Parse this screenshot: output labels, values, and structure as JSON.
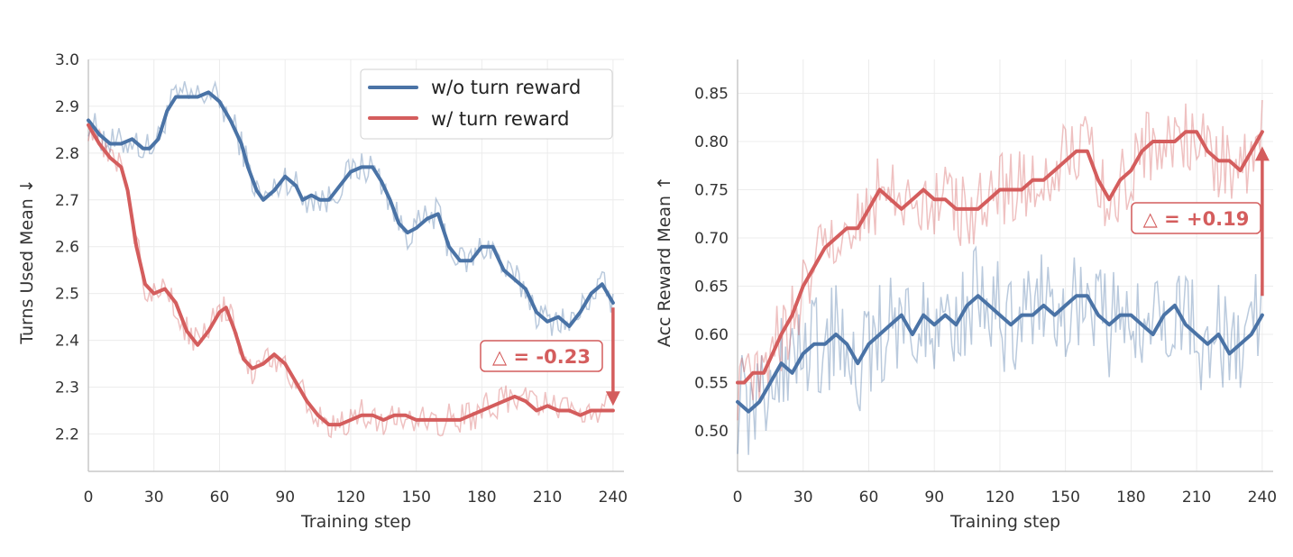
{
  "colors": {
    "blue": "#4a73a6",
    "red": "#d45d5d",
    "grid": "#ececec",
    "axis": "#c8c8c8"
  },
  "legend": {
    "items": [
      {
        "label": "w/o turn reward",
        "color": "#4a73a6"
      },
      {
        "label": "w/ turn reward",
        "color": "#d45d5d"
      }
    ],
    "placement": "upper-right of left chart"
  },
  "chart_data": [
    {
      "type": "line",
      "title": "",
      "xlabel": "Training step",
      "ylabel": "Turns Used Mean ↓",
      "xlim": [
        0,
        245
      ],
      "ylim": [
        2.12,
        3.0
      ],
      "xticks": [
        0,
        30,
        60,
        90,
        120,
        150,
        180,
        210,
        240
      ],
      "yticks": [
        2.2,
        2.3,
        2.4,
        2.5,
        2.6,
        2.7,
        2.8,
        2.9,
        3.0
      ],
      "ytick_labels": [
        "2.2",
        "2.3",
        "2.4",
        "2.5",
        "2.6",
        "2.7",
        "2.8",
        "2.9",
        "3.0"
      ],
      "grid": true,
      "legend": "top-right",
      "series": [
        {
          "name": "w/o turn reward",
          "color": "#4a73a6",
          "smoothed": {
            "x": [
              0,
              5,
              10,
              15,
              20,
              25,
              28,
              32,
              36,
              40,
              45,
              50,
              55,
              60,
              65,
              70,
              73,
              77,
              80,
              85,
              90,
              95,
              98,
              102,
              106,
              110,
              115,
              120,
              125,
              130,
              134,
              138,
              142,
              146,
              150,
              155,
              160,
              165,
              170,
              175,
              180,
              185,
              190,
              195,
              200,
              205,
              210,
              215,
              220,
              225,
              230,
              235,
              240
            ],
            "y": [
              2.87,
              2.84,
              2.82,
              2.82,
              2.83,
              2.81,
              2.81,
              2.83,
              2.89,
              2.92,
              2.92,
              2.92,
              2.93,
              2.91,
              2.87,
              2.82,
              2.77,
              2.72,
              2.7,
              2.72,
              2.75,
              2.73,
              2.7,
              2.71,
              2.7,
              2.7,
              2.73,
              2.76,
              2.77,
              2.77,
              2.74,
              2.7,
              2.65,
              2.63,
              2.64,
              2.66,
              2.67,
              2.6,
              2.57,
              2.57,
              2.6,
              2.6,
              2.55,
              2.53,
              2.51,
              2.46,
              2.44,
              2.45,
              2.43,
              2.46,
              2.5,
              2.52,
              2.48
            ]
          }
        },
        {
          "name": "w/ turn reward",
          "color": "#d45d5d",
          "smoothed": {
            "x": [
              0,
              5,
              10,
              15,
              18,
              22,
              26,
              30,
              35,
              40,
              45,
              50,
              55,
              60,
              63,
              67,
              71,
              75,
              80,
              85,
              90,
              95,
              100,
              105,
              110,
              115,
              120,
              125,
              130,
              135,
              140,
              145,
              150,
              155,
              160,
              165,
              170,
              175,
              180,
              185,
              190,
              195,
              200,
              205,
              210,
              215,
              220,
              225,
              230,
              235,
              240
            ],
            "y": [
              2.86,
              2.82,
              2.79,
              2.77,
              2.72,
              2.6,
              2.52,
              2.5,
              2.51,
              2.48,
              2.42,
              2.39,
              2.42,
              2.46,
              2.47,
              2.42,
              2.36,
              2.34,
              2.35,
              2.37,
              2.35,
              2.31,
              2.27,
              2.24,
              2.22,
              2.22,
              2.23,
              2.24,
              2.24,
              2.23,
              2.24,
              2.24,
              2.23,
              2.23,
              2.23,
              2.23,
              2.23,
              2.24,
              2.25,
              2.26,
              2.27,
              2.28,
              2.27,
              2.25,
              2.26,
              2.25,
              2.25,
              2.24,
              2.25,
              2.25,
              2.25
            ]
          }
        }
      ],
      "annotation": {
        "text": "△ = -0.23",
        "arrow_from": 2.47,
        "arrow_to": 2.26,
        "x": 240
      }
    },
    {
      "type": "line",
      "title": "",
      "xlabel": "Training step",
      "ylabel": "Acc Reward Mean ↑",
      "xlim": [
        0,
        245
      ],
      "ylim": [
        0.458,
        0.885
      ],
      "xticks": [
        0,
        30,
        60,
        90,
        120,
        150,
        180,
        210,
        240
      ],
      "yticks": [
        0.5,
        0.55,
        0.6,
        0.65,
        0.7,
        0.75,
        0.8,
        0.85
      ],
      "ytick_labels": [
        "0.50",
        "0.55",
        "0.60",
        "0.65",
        "0.70",
        "0.75",
        "0.80",
        "0.85"
      ],
      "grid": true,
      "series": [
        {
          "name": "w/o turn reward",
          "color": "#4a73a6",
          "smoothed": {
            "x": [
              0,
              5,
              10,
              15,
              20,
              25,
              30,
              35,
              40,
              45,
              50,
              55,
              60,
              65,
              70,
              75,
              80,
              85,
              90,
              95,
              100,
              105,
              110,
              115,
              120,
              125,
              130,
              135,
              140,
              145,
              150,
              155,
              160,
              165,
              170,
              175,
              180,
              185,
              190,
              195,
              200,
              205,
              210,
              215,
              220,
              225,
              230,
              235,
              240
            ],
            "y": [
              0.53,
              0.52,
              0.53,
              0.55,
              0.57,
              0.56,
              0.58,
              0.59,
              0.59,
              0.6,
              0.59,
              0.57,
              0.59,
              0.6,
              0.61,
              0.62,
              0.6,
              0.62,
              0.61,
              0.62,
              0.61,
              0.63,
              0.64,
              0.63,
              0.62,
              0.61,
              0.62,
              0.62,
              0.63,
              0.62,
              0.63,
              0.64,
              0.64,
              0.62,
              0.61,
              0.62,
              0.62,
              0.61,
              0.6,
              0.62,
              0.63,
              0.61,
              0.6,
              0.59,
              0.6,
              0.58,
              0.59,
              0.6,
              0.62
            ]
          }
        },
        {
          "name": "w/ turn reward",
          "color": "#d45d5d",
          "smoothed": {
            "x": [
              0,
              3,
              7,
              12,
              16,
              20,
              25,
              30,
              35,
              40,
              45,
              50,
              55,
              60,
              65,
              70,
              75,
              80,
              85,
              90,
              95,
              100,
              105,
              110,
              115,
              120,
              125,
              130,
              135,
              140,
              145,
              150,
              155,
              160,
              165,
              170,
              175,
              180,
              185,
              190,
              195,
              200,
              205,
              210,
              215,
              220,
              225,
              230,
              235,
              240
            ],
            "y": [
              0.55,
              0.55,
              0.56,
              0.56,
              0.58,
              0.6,
              0.62,
              0.65,
              0.67,
              0.69,
              0.7,
              0.71,
              0.71,
              0.73,
              0.75,
              0.74,
              0.73,
              0.74,
              0.75,
              0.74,
              0.74,
              0.73,
              0.73,
              0.73,
              0.74,
              0.75,
              0.75,
              0.75,
              0.76,
              0.76,
              0.77,
              0.78,
              0.79,
              0.79,
              0.76,
              0.74,
              0.76,
              0.77,
              0.79,
              0.8,
              0.8,
              0.8,
              0.81,
              0.81,
              0.79,
              0.78,
              0.78,
              0.77,
              0.79,
              0.81
            ]
          }
        }
      ],
      "annotation": {
        "text": "△ = +0.19",
        "arrow_from": 0.64,
        "arrow_to": 0.795,
        "x": 240
      }
    }
  ]
}
